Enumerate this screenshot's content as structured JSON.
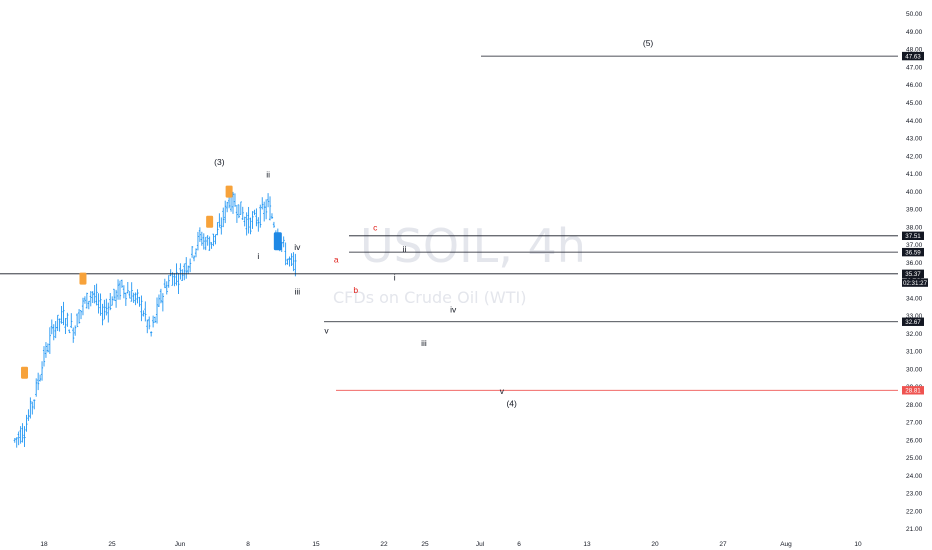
{
  "watermark": {
    "symbol": "USOIL, 4h",
    "description": "CFDs on Crude Oil (WTI)"
  },
  "colors": {
    "candle": "#2196f3",
    "orange_marker": "#f7a23a",
    "blue_marker": "#1e88e5",
    "red_level": "#ef5350",
    "level": "#131722",
    "wave_red": "#e0201b"
  },
  "chart_data": {
    "type": "candlestick",
    "symbol": "USOIL",
    "timeframe": "4h",
    "ylim": [
      20.5,
      50.6
    ],
    "y_ticks": [
      "50.00",
      "49.00",
      "48.00",
      "47.00",
      "46.00",
      "45.00",
      "44.00",
      "43.00",
      "42.00",
      "41.00",
      "40.00",
      "39.00",
      "38.00",
      "37.00",
      "36.00",
      "35.00",
      "34.00",
      "33.00",
      "32.00",
      "31.00",
      "30.00",
      "29.00",
      "28.00",
      "27.00",
      "26.00",
      "25.00",
      "24.00",
      "23.00",
      "22.00",
      "21.00"
    ],
    "x_ticks": [
      "18",
      "25",
      "Jun",
      "8",
      "15",
      "22",
      "25",
      "Jul",
      "6",
      "13",
      "20",
      "27",
      "Aug",
      "10"
    ],
    "ohlc_path": [
      {
        "x": "May 15",
        "price": 26.0
      },
      {
        "x": "May 16",
        "price": 26.6
      },
      {
        "x": "May 17",
        "price": 28.4
      },
      {
        "x": "May 18",
        "price": 30.6
      },
      {
        "x": "May 19",
        "price": 32.3
      },
      {
        "x": "May 20",
        "price": 33.0
      },
      {
        "x": "May 21",
        "price": 32.2
      },
      {
        "x": "May 22",
        "price": 33.6
      },
      {
        "x": "May 23",
        "price": 34.3
      },
      {
        "x": "May 24",
        "price": 33.2
      },
      {
        "x": "May 25",
        "price": 33.9
      },
      {
        "x": "May 26",
        "price": 34.6
      },
      {
        "x": "May 27",
        "price": 34.2
      },
      {
        "x": "May 28",
        "price": 33.6
      },
      {
        "x": "May 29",
        "price": 32.0
      },
      {
        "x": "May 30",
        "price": 34.0
      },
      {
        "x": "May 31",
        "price": 35.2
      },
      {
        "x": "Jun 1",
        "price": 35.3
      },
      {
        "x": "Jun 2",
        "price": 36.2
      },
      {
        "x": "Jun 3",
        "price": 37.4
      },
      {
        "x": "Jun 4",
        "price": 37.1
      },
      {
        "x": "Jun 5",
        "price": 37.8
      },
      {
        "x": "Jun 6",
        "price": 39.6
      },
      {
        "x": "Jun 7",
        "price": 39.1
      },
      {
        "x": "Jun 8",
        "price": 38.2
      },
      {
        "x": "Jun 9",
        "price": 38.5
      },
      {
        "x": "Jun 10",
        "price": 39.2
      },
      {
        "x": "Jun 11",
        "price": 37.7
      },
      {
        "x": "Jun 12",
        "price": 36.2
      },
      {
        "x": "Jun 13",
        "price": 35.6
      }
    ],
    "horizontal_levels": [
      {
        "price": 47.63,
        "label": "47.63",
        "color": "#131722"
      },
      {
        "price": 37.51,
        "label": "37.51",
        "color": "#131722"
      },
      {
        "price": 36.59,
        "label": "36.59",
        "color": "#131722"
      },
      {
        "price": 35.37,
        "label": "35.37",
        "color": "#131722",
        "countdown": "02:31:27"
      },
      {
        "price": 32.67,
        "label": "32.67",
        "color": "#131722"
      },
      {
        "price": 28.81,
        "label": "28.81",
        "color": "#ef5350"
      }
    ],
    "wave_labels": [
      {
        "text": "(5)",
        "price": 48.2,
        "x": "Jul 19",
        "color": "dark"
      },
      {
        "text": "(3)",
        "price": 41.5,
        "x": "Jun 5",
        "color": "dark"
      },
      {
        "text": "ii",
        "price": 40.8,
        "x": "Jun 10",
        "color": "dark"
      },
      {
        "text": "iv",
        "price": 36.7,
        "x": "Jun 13",
        "color": "dark"
      },
      {
        "text": "i",
        "price": 36.2,
        "x": "Jun 9",
        "color": "dark"
      },
      {
        "text": "iii",
        "price": 34.2,
        "x": "Jun 13",
        "color": "dark"
      },
      {
        "text": "c",
        "price": 37.8,
        "x": "Jun 21",
        "color": "red"
      },
      {
        "text": "ii",
        "price": 36.6,
        "x": "Jun 24",
        "color": "dark"
      },
      {
        "text": "a",
        "price": 36.0,
        "x": "Jun 17",
        "color": "red"
      },
      {
        "text": "i",
        "price": 35.0,
        "x": "Jun 23",
        "color": "dark"
      },
      {
        "text": "b",
        "price": 34.3,
        "x": "Jun 19",
        "color": "red"
      },
      {
        "text": "iv",
        "price": 33.2,
        "x": "Jun 29",
        "color": "dark"
      },
      {
        "text": "v",
        "price": 32.0,
        "x": "Jun 16",
        "color": "dark"
      },
      {
        "text": "iii",
        "price": 31.3,
        "x": "Jun 26",
        "color": "dark"
      },
      {
        "text": "v",
        "price": 28.6,
        "x": "Jul 4",
        "color": "dark"
      },
      {
        "text": "(4)",
        "price": 27.9,
        "x": "Jul 5",
        "color": "dark"
      }
    ],
    "markers": [
      {
        "type": "orange",
        "price": 29.8,
        "x": "May 16"
      },
      {
        "type": "orange",
        "price": 35.1,
        "x": "May 22"
      },
      {
        "type": "orange",
        "price": 38.3,
        "x": "Jun 4"
      },
      {
        "type": "orange",
        "price": 40.0,
        "x": "Jun 6"
      },
      {
        "type": "blue",
        "price": 37.2,
        "x": "Jun 11"
      }
    ]
  }
}
